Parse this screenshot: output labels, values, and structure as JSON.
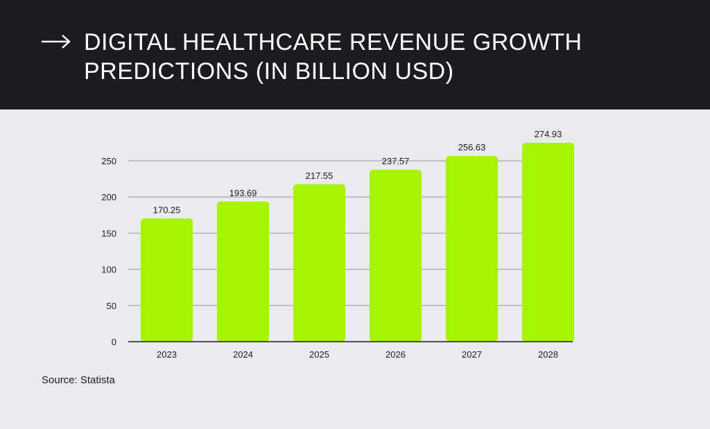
{
  "header": {
    "title": "DIGITAL HEALTHCARE REVENUE GROWTH PREDICTIONS (IN BILLION USD)",
    "icon": "arrow-right-icon"
  },
  "source": "Source: Statista",
  "colors": {
    "header_bg": "#1c1b1f",
    "page_bg": "#e9ebee",
    "bar": "#a6f500",
    "text": "#1c1b1f",
    "grid": "#9a9a9a"
  },
  "chart_data": {
    "type": "bar",
    "title": "DIGITAL HEALTHCARE REVENUE GROWTH PREDICTIONS (IN BILLION USD)",
    "categories": [
      "2023",
      "2024",
      "2025",
      "2026",
      "2027",
      "2028"
    ],
    "values": [
      170.25,
      193.69,
      217.55,
      237.57,
      256.63,
      274.93
    ],
    "value_labels": [
      "170.25",
      "193.69",
      "217.55",
      "237.57",
      "256.63",
      "274.93"
    ],
    "yticks": [
      0,
      50,
      100,
      150,
      200,
      250
    ],
    "ylim": [
      0,
      250
    ],
    "xlabel": "",
    "ylabel": "",
    "grid": true,
    "legend": "none"
  }
}
